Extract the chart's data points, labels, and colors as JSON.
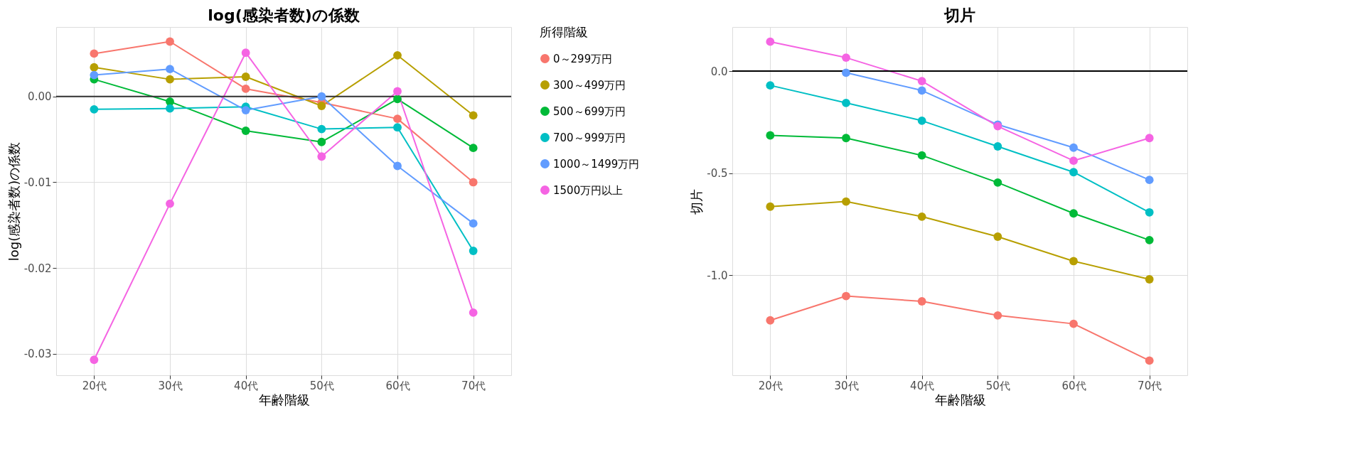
{
  "chart_data": [
    {
      "type": "line",
      "title": "log(感染者数)の係数",
      "xlabel": "年齢階級",
      "ylabel": "log(感染者数)の係数",
      "legend_title": "所得階級",
      "categories": [
        "20代",
        "30代",
        "40代",
        "50代",
        "60代",
        "70代"
      ],
      "ylim": [
        -0.0325,
        0.0081
      ],
      "yticks": [
        {
          "value": 0,
          "label": "0.00"
        },
        {
          "value": -0.01,
          "label": "-0.01"
        },
        {
          "value": -0.02,
          "label": "-0.02"
        },
        {
          "value": -0.03,
          "label": "-0.03"
        }
      ],
      "grid": true,
      "legend": "right",
      "marker": "circle",
      "ref_lines": [
        {
          "axis": "y",
          "value": 0,
          "color": "#333333"
        }
      ],
      "series": [
        {
          "name": "0～299万円",
          "color": "#f8766d",
          "values": [
            0.005,
            0.0064,
            0.0009,
            -0.0007,
            -0.0026,
            -0.01
          ]
        },
        {
          "name": "300～499万円",
          "color": "#b79f00",
          "values": [
            0.0034,
            0.002,
            0.0023,
            -0.0011,
            0.0048,
            -0.0022
          ]
        },
        {
          "name": "500～699万円",
          "color": "#00ba38",
          "values": [
            0.002,
            -0.0006,
            -0.004,
            -0.0053,
            -0.0003,
            -0.006
          ]
        },
        {
          "name": "700～999万円",
          "color": "#00bfc4",
          "values": [
            -0.0015,
            -0.0014,
            -0.0012,
            -0.0038,
            -0.0036,
            -0.018
          ]
        },
        {
          "name": "1000～1499万円",
          "color": "#619cff",
          "values": [
            0.0025,
            0.0032,
            -0.0016,
            0.0,
            -0.0081,
            -0.0148
          ]
        },
        {
          "name": "1500万円以上",
          "color": "#f564e3",
          "values": [
            -0.0307,
            -0.0125,
            0.0051,
            -0.007,
            0.0006,
            -0.0252
          ]
        }
      ]
    },
    {
      "type": "line",
      "title": "切片",
      "xlabel": "年齢階級",
      "ylabel": "切片",
      "categories": [
        "20代",
        "30代",
        "40代",
        "50代",
        "60代",
        "70代"
      ],
      "ylim": [
        -1.49,
        0.216
      ],
      "yticks": [
        {
          "value": 0,
          "label": "0.0"
        },
        {
          "value": -0.5,
          "label": "-0.5"
        },
        {
          "value": -1.0,
          "label": "-1.0"
        }
      ],
      "grid": true,
      "marker": "circle",
      "ref_lines": [
        {
          "axis": "y",
          "value": 0,
          "color": "#000000"
        }
      ],
      "series": [
        {
          "color": "#f8766d",
          "values": [
            -1.221,
            -1.102,
            -1.128,
            -1.197,
            -1.238,
            -1.418
          ]
        },
        {
          "color": "#b79f00",
          "values": [
            -0.664,
            -0.639,
            -0.713,
            -0.811,
            -0.931,
            -1.02
          ]
        },
        {
          "color": "#00ba38",
          "values": [
            -0.315,
            -0.328,
            -0.413,
            -0.546,
            -0.697,
            -0.828
          ]
        },
        {
          "color": "#00bfc4",
          "values": [
            -0.07,
            -0.156,
            -0.243,
            -0.369,
            -0.495,
            -0.692
          ]
        },
        {
          "color": "#619cff",
          "values": [
            null,
            -0.008,
            -0.095,
            -0.262,
            -0.375,
            -0.533
          ]
        },
        {
          "color": "#f564e3",
          "values": [
            0.144,
            0.066,
            -0.049,
            -0.27,
            -0.439,
            -0.328
          ]
        }
      ]
    }
  ]
}
